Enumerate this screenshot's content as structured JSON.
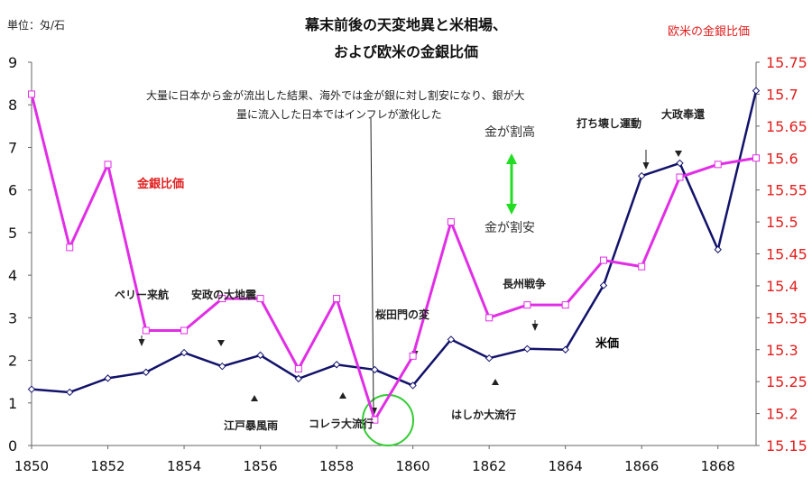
{
  "title_line1": "幕末前後の天変地異と米相場、",
  "title_line2": "および欧米の金銀比価",
  "left_unit_label": "単位：匁/石",
  "right_axis_label": "欧米の金銀比価",
  "annotations": {
    "outflow_note_line1": "大量に日本から金が流出した結果、海外では金が銀に対し割安になり、銀が大",
    "outflow_note_line2": "量に流入した日本ではインフレが激化した",
    "gold_expensive": "金が割高",
    "gold_cheap": "金が割安",
    "kingin_label": "金銀比価",
    "rice_label": "米価",
    "perry": "ペリー来航",
    "ansei_quake": "安政の大地震",
    "edo_storm": "江戸暴風雨",
    "cholera": "コレラ大流行",
    "sakuradamon": "桜田門の変",
    "measles": "はしか大流行",
    "choshu_war": "長州戦争",
    "uchikowashi": "打ち壊し運動",
    "taisei_hokan": "大政奉還"
  },
  "colors": {
    "rice_line": "#12126b",
    "ratio_line": "#e12ee6",
    "right_axis_text": "#e0201f",
    "arrow_green": "#22dd22",
    "circle_green": "#33cc33"
  },
  "chart_data": {
    "type": "line",
    "x_range": [
      1850,
      1869
    ],
    "x_ticks": [
      1850,
      1852,
      1854,
      1856,
      1858,
      1860,
      1862,
      1864,
      1866,
      1868
    ],
    "x_tick_labels": [
      "1850",
      "1852",
      "1854",
      "1856",
      "1858",
      "1860",
      "1862",
      "1864",
      "1866",
      "1868"
    ],
    "left_axis": {
      "range": [
        0,
        9
      ],
      "ticks": [
        0,
        1,
        2,
        3,
        4,
        5,
        6,
        7,
        8,
        9
      ],
      "tick_labels": [
        "0",
        "1",
        "2",
        "3",
        "4",
        "5",
        "6",
        "7",
        "8",
        "9"
      ]
    },
    "right_axis": {
      "range": [
        15.15,
        15.75
      ],
      "ticks": [
        15.15,
        15.2,
        15.25,
        15.3,
        15.35,
        15.4,
        15.45,
        15.5,
        15.55,
        15.6,
        15.65,
        15.7,
        15.75
      ],
      "tick_labels": [
        "15.15",
        "15.2",
        "15.25",
        "15.3",
        "15.35",
        "15.4",
        "15.45",
        "15.5",
        "15.55",
        "15.6",
        "15.65",
        "15.7",
        "15.75"
      ]
    },
    "grid": false,
    "series": [
      {
        "name": "米価",
        "axis": "left",
        "marker": "diamond",
        "x": [
          1850,
          1851,
          1852,
          1853,
          1854,
          1855,
          1856,
          1857,
          1858,
          1859,
          1860,
          1861,
          1862,
          1863,
          1864,
          1865,
          1866,
          1867,
          1868,
          1869
        ],
        "values": [
          1.32,
          1.25,
          1.58,
          1.72,
          2.18,
          1.86,
          2.12,
          1.57,
          1.9,
          1.78,
          1.41,
          2.49,
          2.05,
          2.27,
          2.25,
          3.76,
          6.33,
          6.63,
          4.6,
          8.33
        ]
      },
      {
        "name": "金銀比価",
        "axis": "right",
        "marker": "square",
        "x": [
          1850,
          1851,
          1852,
          1853,
          1854,
          1855,
          1856,
          1857,
          1858,
          1859,
          1860,
          1861,
          1862,
          1863,
          1864,
          1865,
          1866,
          1867,
          1868,
          1869
        ],
        "values": [
          15.7,
          15.46,
          15.59,
          15.33,
          15.33,
          15.38,
          15.38,
          15.27,
          15.38,
          15.19,
          15.29,
          15.5,
          15.35,
          15.37,
          15.37,
          15.44,
          15.43,
          15.57,
          15.59,
          15.6
        ]
      }
    ]
  }
}
